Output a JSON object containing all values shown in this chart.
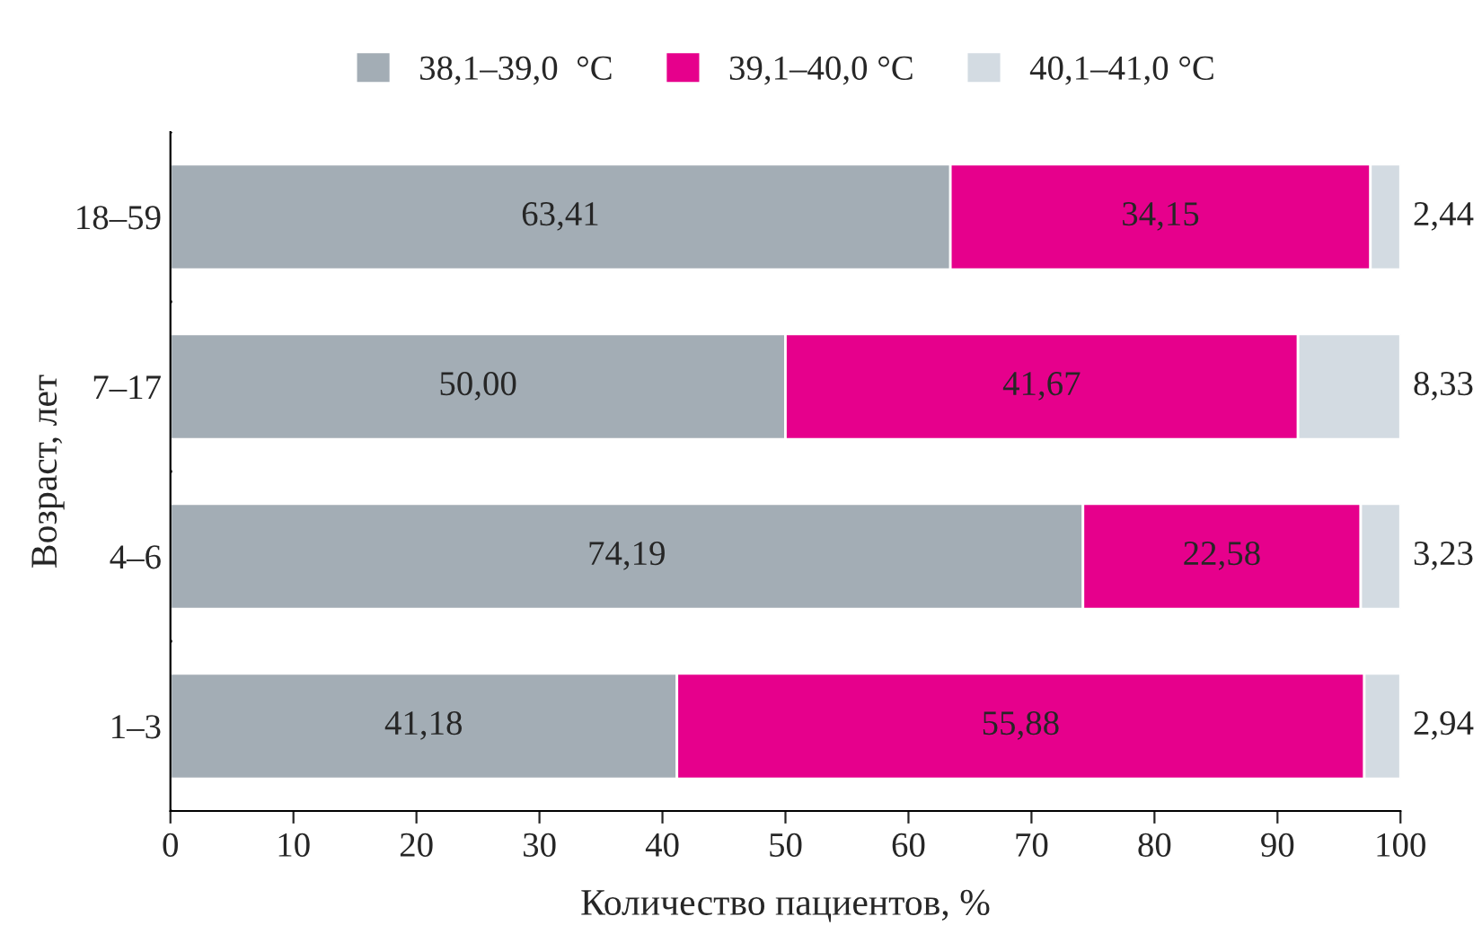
{
  "chart_data": {
    "type": "bar",
    "orientation": "horizontal",
    "stacked": true,
    "xlabel": "Количество пациентов, %",
    "ylabel": "Возраст, лет",
    "categories": [
      "18–59",
      "7–17",
      "4–6",
      "1–3"
    ],
    "series": [
      {
        "name": "38,1–39,0  °C",
        "color": "#a3adb5",
        "values": [
          63.41,
          50.0,
          74.19,
          41.18
        ],
        "value_labels": [
          "63,41",
          "50,00",
          "74,19",
          "41,18"
        ]
      },
      {
        "name": "39,1–40,0 °C",
        "color": "#e6008c",
        "values": [
          34.15,
          41.67,
          22.58,
          55.88
        ],
        "value_labels": [
          "34,15",
          "41,67",
          "22,58",
          "55,88"
        ]
      },
      {
        "name": "40,1–41,0 °C",
        "color": "#d3dbe2",
        "values": [
          2.44,
          8.33,
          3.23,
          2.94
        ],
        "value_labels": [
          "2,44",
          "8,33",
          "3,23",
          "2,94"
        ]
      }
    ],
    "xlim": [
      0,
      100
    ],
    "xticks": [
      0,
      10,
      20,
      30,
      40,
      50,
      60,
      70,
      80,
      90,
      100
    ],
    "grid": false,
    "legend": "top"
  }
}
